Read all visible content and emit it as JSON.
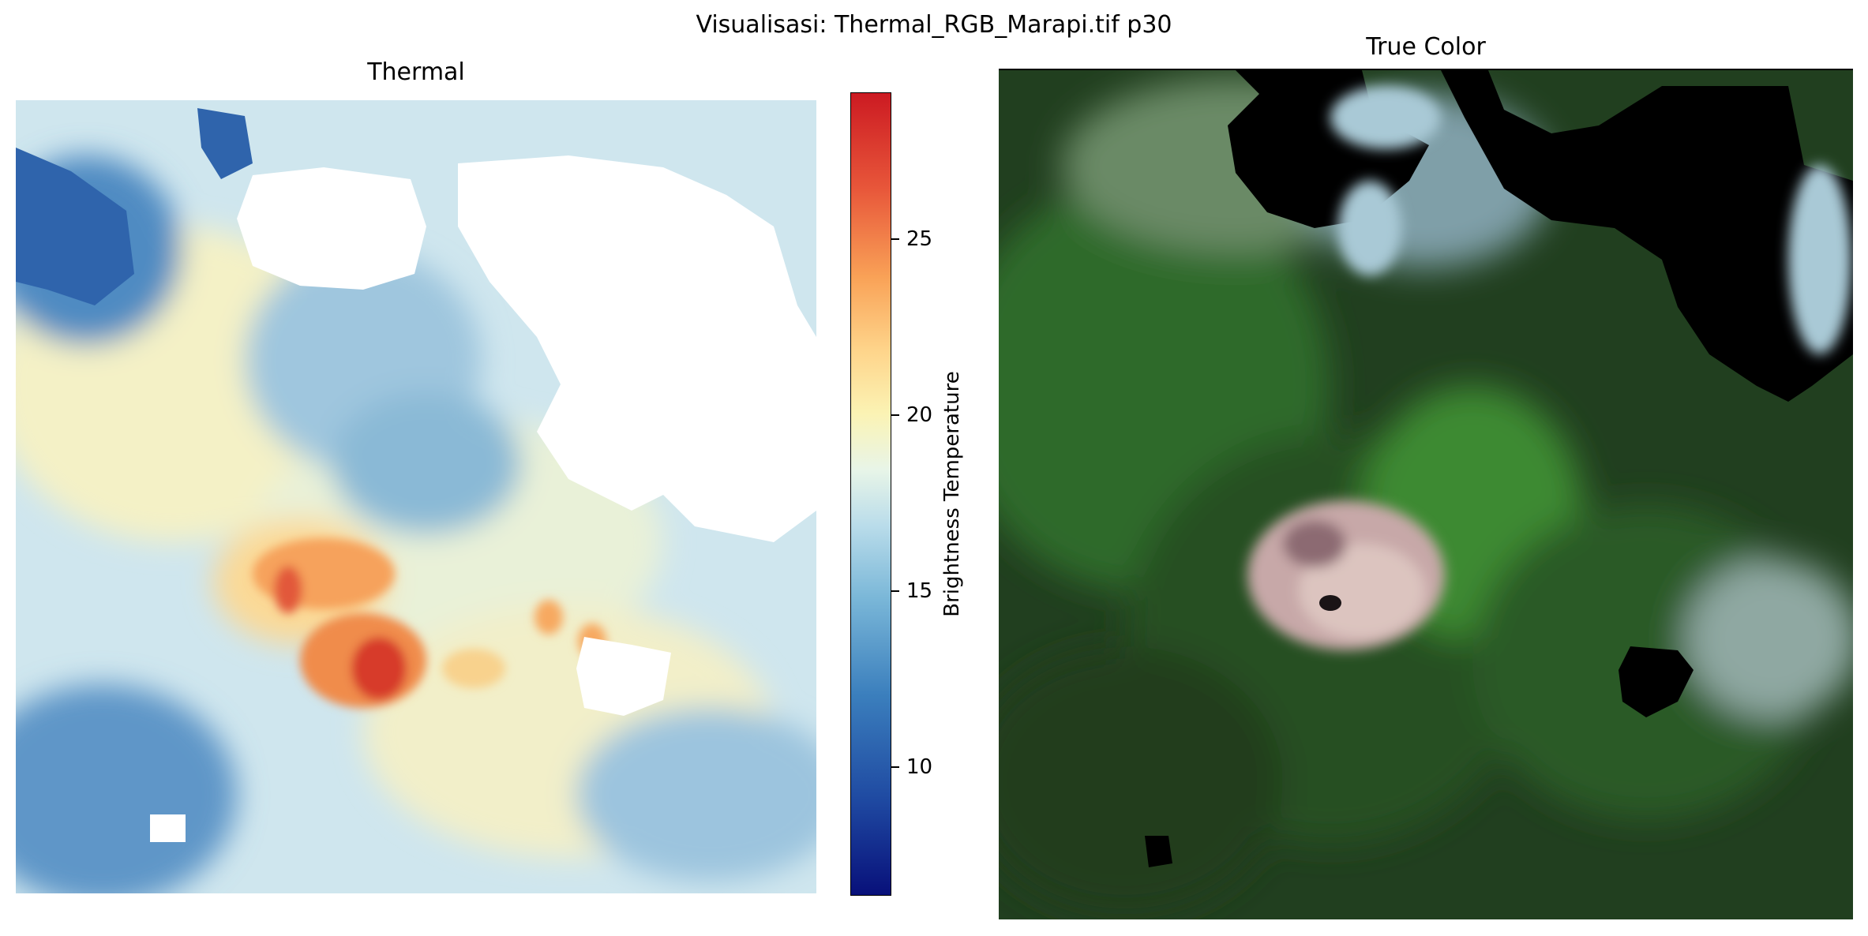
{
  "figure": {
    "suptitle": "Visualisasi: Thermal_RGB_Marapi.tif p30"
  },
  "thermal_panel": {
    "title": "Thermal",
    "colormap": "RdYlBu_r",
    "colorbar": {
      "label": "Brightness Temperature",
      "ticks": [
        "10",
        "15",
        "20",
        "25"
      ],
      "range": [
        6,
        29
      ]
    },
    "colors": {
      "cold": "#1f4aa2",
      "mid": "#fbf3b4",
      "hot": "#cc1a22",
      "masked": "#ffffff"
    }
  },
  "rgb_panel": {
    "title": "True Color",
    "colors": {
      "vegetation": "#2f6b2a",
      "crater": "#c9a8a8",
      "cloud": "#a9c9d6",
      "masked": "#000000"
    }
  }
}
